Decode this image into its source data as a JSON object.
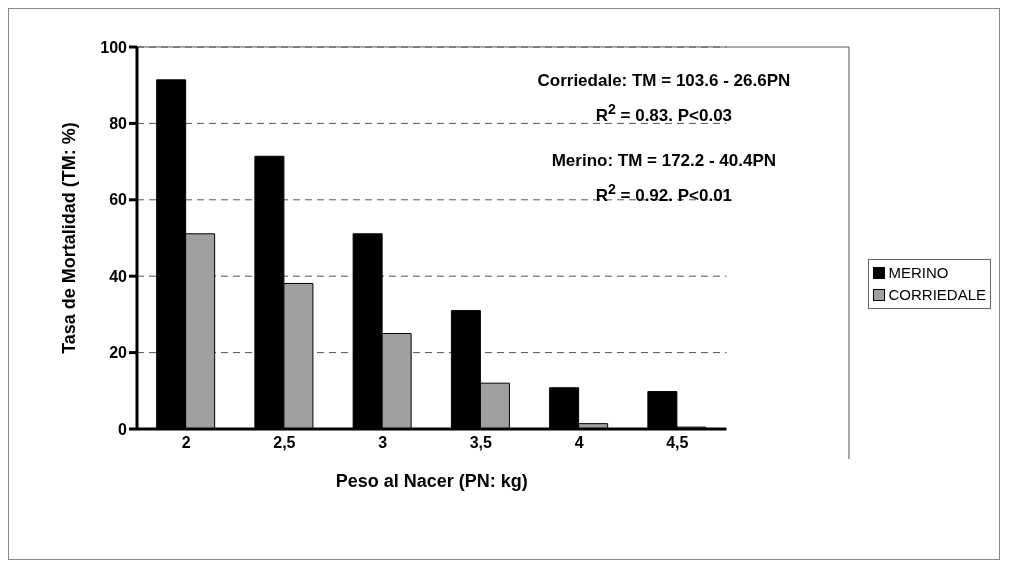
{
  "chart_data": {
    "type": "bar",
    "xlabel": "Peso al Nacer (PN: kg)",
    "ylabel": "Tasa de Mortalidad (TM: %)",
    "categories": [
      "2",
      "2,5",
      "3",
      "3,5",
      "4",
      "4,5"
    ],
    "series": [
      {
        "name": "MERINO",
        "color": "#000000",
        "values": [
          91.4,
          71.4,
          51.1,
          31,
          10.8,
          9.8
        ]
      },
      {
        "name": "CORRIEDALE",
        "color": "#a0a0a0",
        "values": [
          51.1,
          38.1,
          25,
          12,
          1.4,
          0.5
        ]
      }
    ],
    "ylim": [
      0,
      100
    ],
    "yticks": [
      0,
      20,
      40,
      60,
      80,
      100
    ],
    "grid": "y",
    "legend": "right",
    "annotations": [
      "Corriedale: TM = 103.6 - 26.6PN",
      "R$^{2}$ = 0.83. P<0.03",
      "Merino: TM = 172.2 - 40.4PN",
      "R$^{2}$ = 0.92. P<0.01"
    ]
  }
}
